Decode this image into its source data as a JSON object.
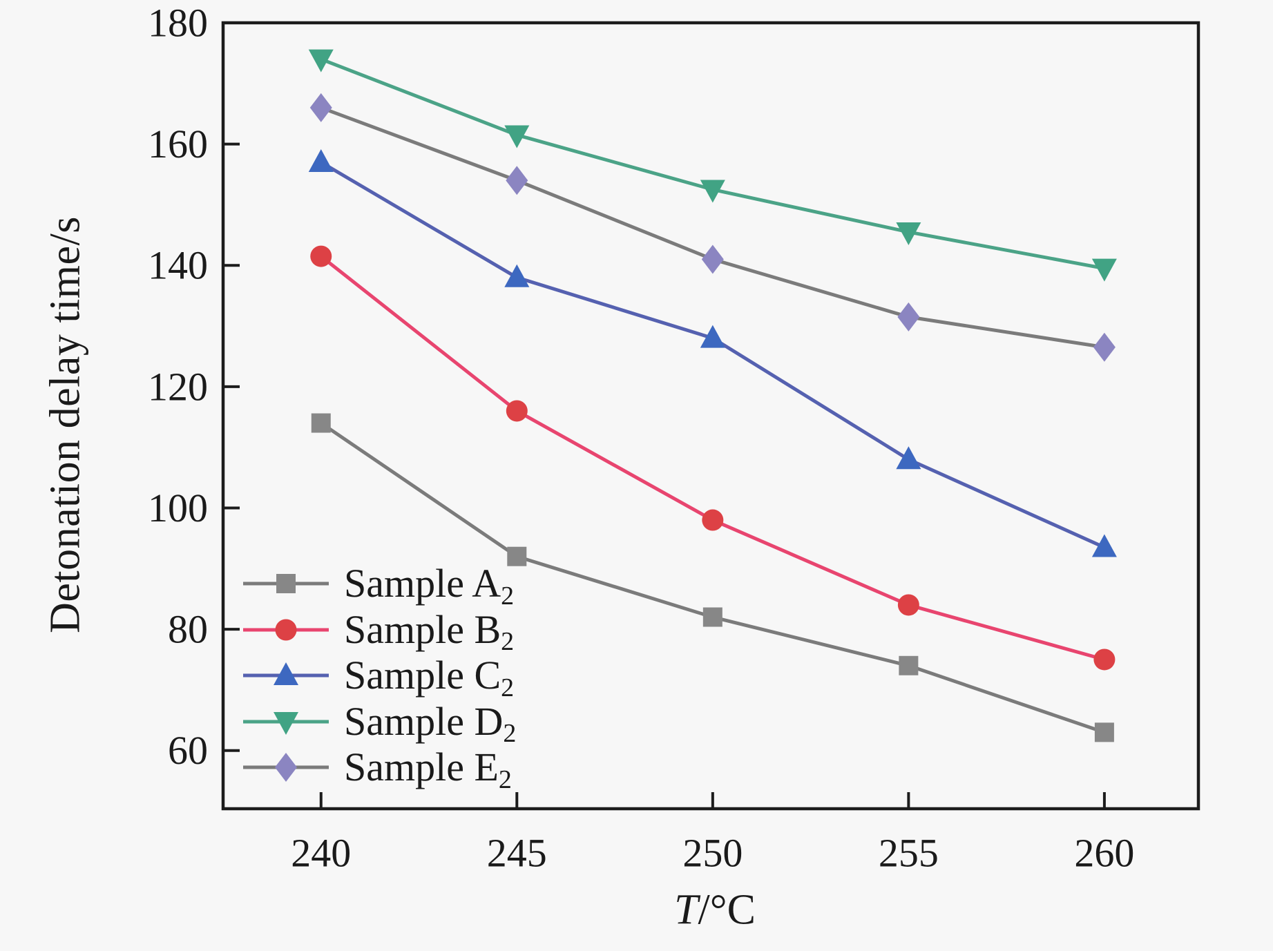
{
  "figure": {
    "background": "#f7f7f7",
    "axis_color": "#1c1c1c",
    "text_color": "#1a1a1a"
  },
  "axes": {
    "x_title_var": "T",
    "x_title_rest": "/°C",
    "y_ticks": [
      180,
      160,
      140,
      120,
      100,
      80,
      60
    ],
    "x_ticks": [
      240,
      245,
      250,
      255,
      260
    ]
  },
  "chart_data": {
    "type": "line",
    "title": "",
    "xlabel": "T/°C",
    "ylabel": "Detonation delay time/s",
    "x": [
      240,
      245,
      250,
      255,
      260
    ],
    "xlim": [
      237.5,
      262.4
    ],
    "ylim": [
      50.4,
      180
    ],
    "y_tick_step": 20,
    "grid": false,
    "legend_position": "lower-left",
    "series": [
      {
        "name": "Sample A",
        "sub": "2",
        "marker": "square",
        "marker_color": "#878787",
        "line_color": "#7b7b7b",
        "values": [
          114,
          92,
          82,
          74,
          63
        ]
      },
      {
        "name": "Sample B",
        "sub": "2",
        "marker": "circle",
        "marker_color": "#dd4145",
        "line_color": "#e8456f",
        "values": [
          141.5,
          116,
          98,
          84,
          75
        ]
      },
      {
        "name": "Sample C",
        "sub": "2",
        "marker": "triangle-up",
        "marker_color": "#3d68c0",
        "line_color": "#5561b0",
        "values": [
          157,
          138,
          128,
          108,
          93.5
        ]
      },
      {
        "name": "Sample D",
        "sub": "2",
        "marker": "triangle-down",
        "marker_color": "#41a384",
        "line_color": "#4ba387",
        "values": [
          174,
          161.5,
          152.5,
          145.5,
          139.5
        ]
      },
      {
        "name": "Sample E",
        "sub": "2",
        "marker": "diamond",
        "marker_color": "#8b85c1",
        "line_color": "#7b7b7b",
        "values": [
          166,
          154,
          141,
          131.5,
          126.5
        ]
      }
    ]
  }
}
